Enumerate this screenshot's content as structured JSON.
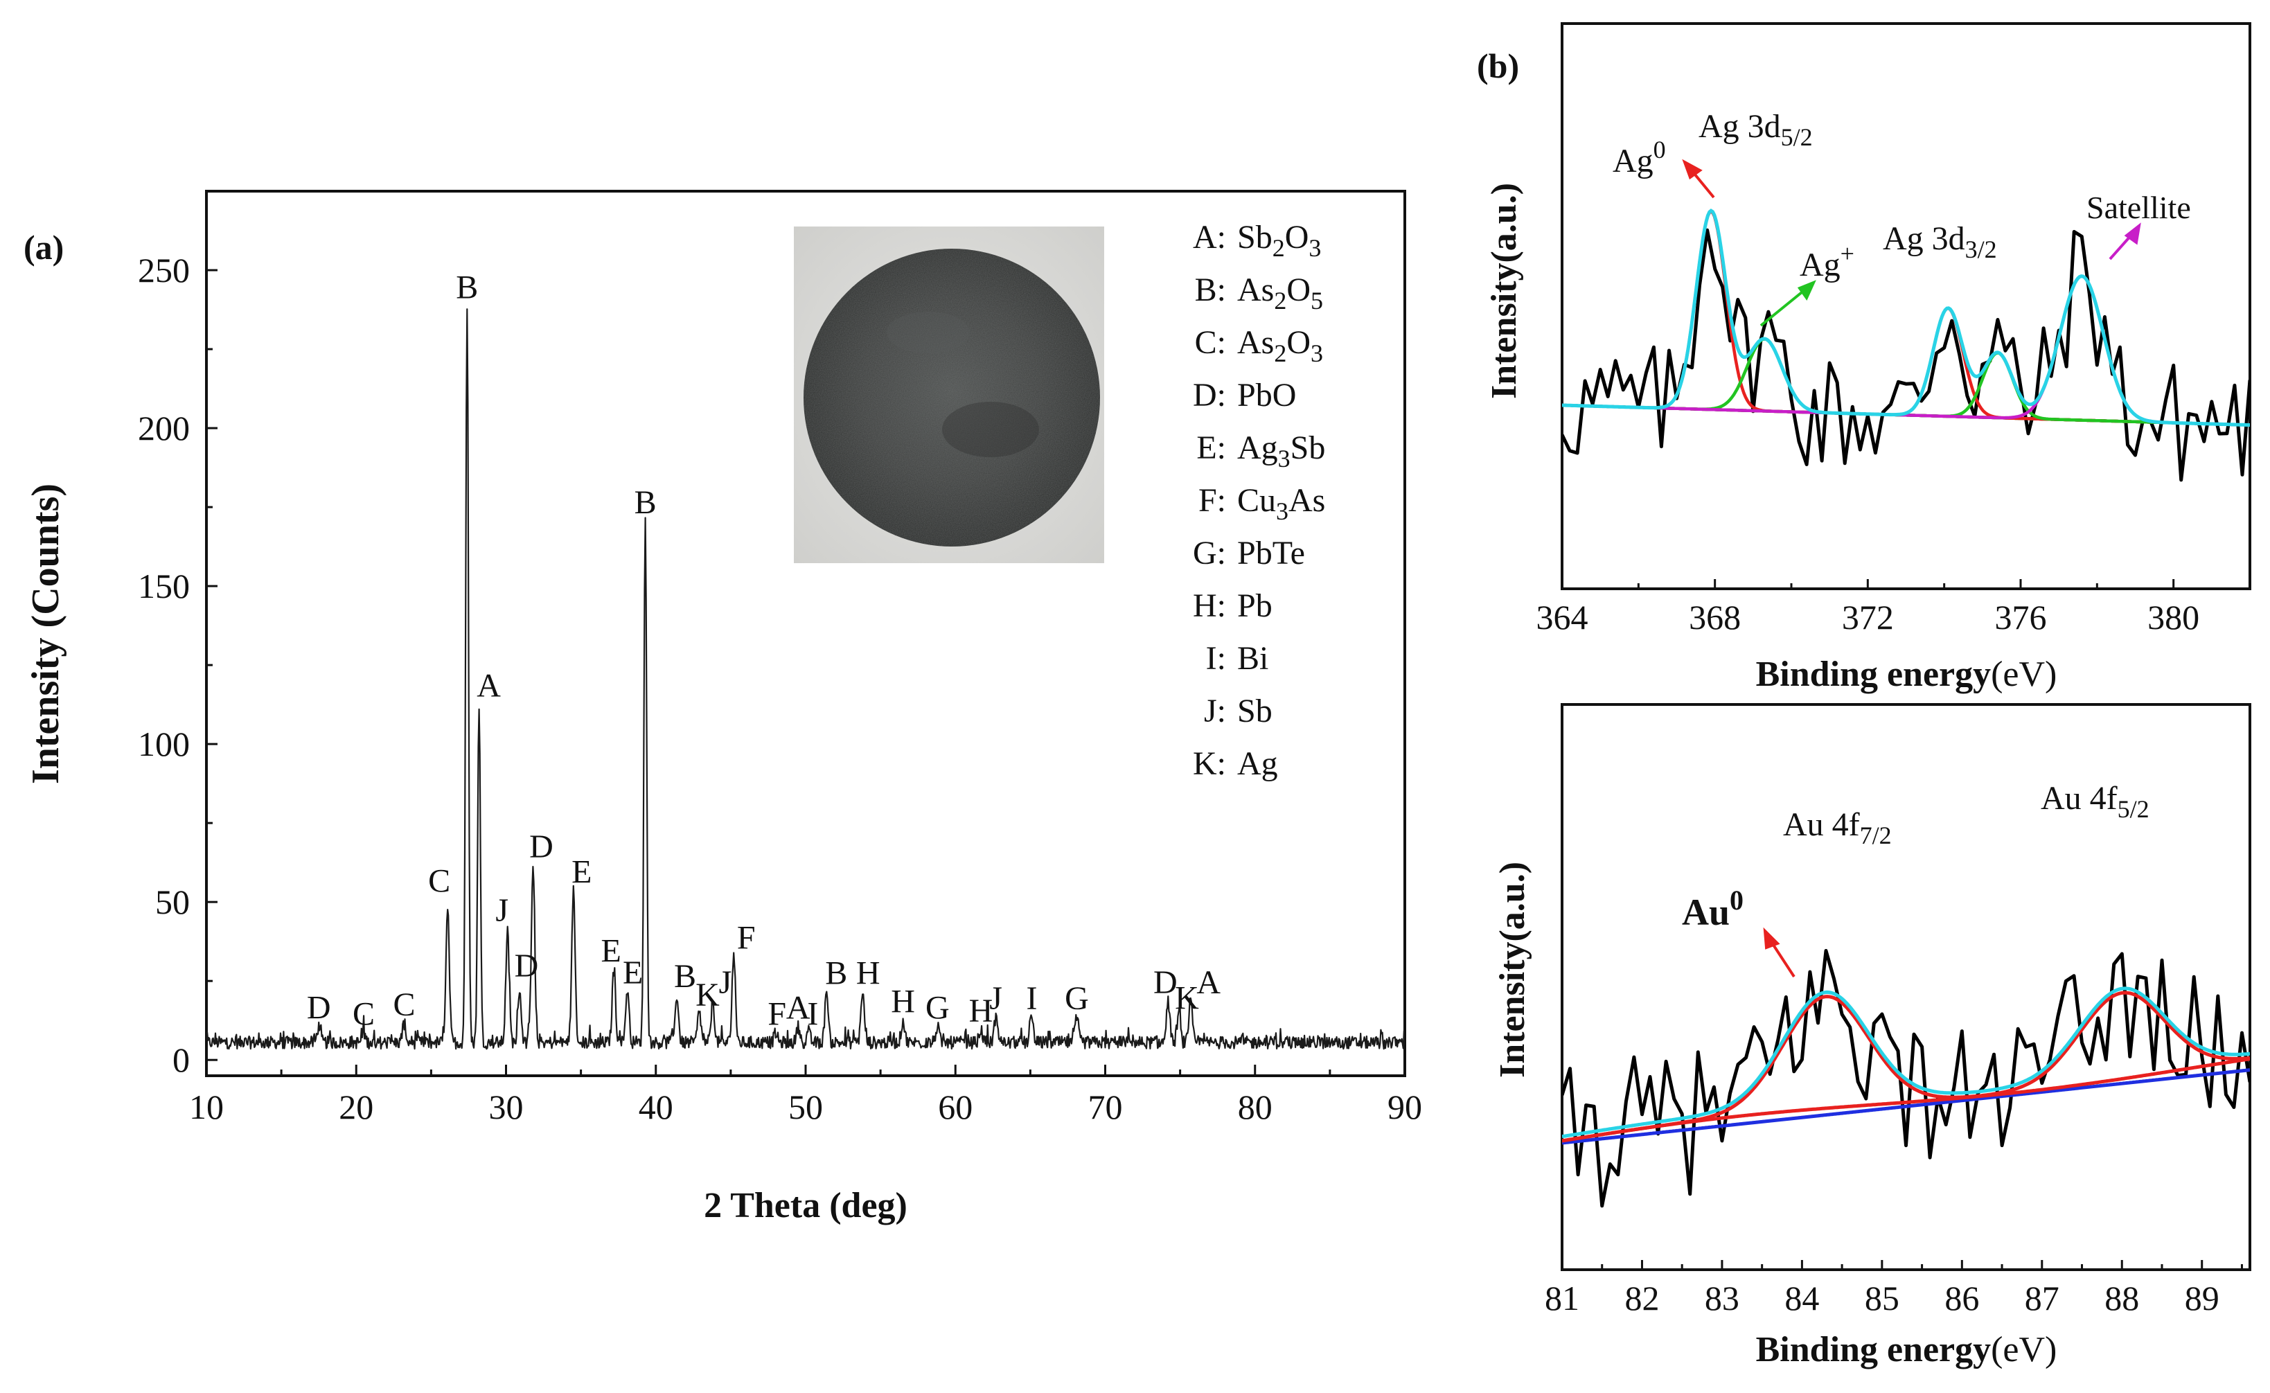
{
  "figure": {
    "panels": [
      {
        "id": "a",
        "label": "(a)",
        "type": "line",
        "xlabel": "2 Theta (deg)",
        "ylabel": "Intensity (Counts)",
        "xlim": [
          10,
          90
        ],
        "ylim": [
          -5,
          275
        ],
        "xticks": [
          10,
          20,
          30,
          40,
          50,
          60,
          70,
          80,
          90
        ],
        "yticks": [
          0,
          50,
          100,
          150,
          200,
          250
        ],
        "series_color": "#1a1a1a",
        "peaks": [
          {
            "x": 17.5,
            "y": 10,
            "label": "D"
          },
          {
            "x": 20.5,
            "y": 8,
            "label": "C"
          },
          {
            "x": 23.2,
            "y": 11,
            "label": "C"
          },
          {
            "x": 26.1,
            "y": 48,
            "label": "C"
          },
          {
            "x": 27.4,
            "y": 238,
            "label": "B"
          },
          {
            "x": 28.2,
            "y": 112,
            "label": "A"
          },
          {
            "x": 30.1,
            "y": 40,
            "label": "J"
          },
          {
            "x": 30.9,
            "y": 22,
            "label": "D"
          },
          {
            "x": 31.8,
            "y": 61,
            "label": "D"
          },
          {
            "x": 34.5,
            "y": 53,
            "label": "E"
          },
          {
            "x": 37.2,
            "y": 28,
            "label": "E"
          },
          {
            "x": 38.1,
            "y": 22,
            "label": "E"
          },
          {
            "x": 39.3,
            "y": 170,
            "label": "B"
          },
          {
            "x": 41.4,
            "y": 20,
            "label": "B"
          },
          {
            "x": 42.9,
            "y": 15,
            "label": "K"
          },
          {
            "x": 43.8,
            "y": 18,
            "label": "J"
          },
          {
            "x": 45.2,
            "y": 33,
            "label": "F"
          },
          {
            "x": 48.0,
            "y": 8,
            "label": "F"
          },
          {
            "x": 49.5,
            "y": 10,
            "label": "A"
          },
          {
            "x": 50.2,
            "y": 8,
            "label": "I"
          },
          {
            "x": 51.4,
            "y": 21,
            "label": "B"
          },
          {
            "x": 53.8,
            "y": 21,
            "label": "H"
          },
          {
            "x": 56.5,
            "y": 12,
            "label": "H"
          },
          {
            "x": 58.8,
            "y": 10,
            "label": "G"
          },
          {
            "x": 61.7,
            "y": 9,
            "label": "H"
          },
          {
            "x": 62.7,
            "y": 13,
            "label": "J"
          },
          {
            "x": 65.1,
            "y": 13,
            "label": "I"
          },
          {
            "x": 68.1,
            "y": 13,
            "label": "G"
          },
          {
            "x": 74.2,
            "y": 18,
            "label": "D"
          },
          {
            "x": 74.9,
            "y": 14,
            "label": "K"
          },
          {
            "x": 75.7,
            "y": 18,
            "label": "A"
          }
        ],
        "legend": [
          {
            "key": "A:",
            "name": "Sb",
            "sub1": "2",
            "mid": "O",
            "sub2": "3"
          },
          {
            "key": "B:",
            "name": "As",
            "sub1": "2",
            "mid": "O",
            "sub2": "5"
          },
          {
            "key": "C:",
            "name": "As",
            "sub1": "2",
            "mid": "O",
            "sub2": "3"
          },
          {
            "key": "D:",
            "name": "PbO",
            "sub1": "",
            "mid": "",
            "sub2": ""
          },
          {
            "key": "E:",
            "name": "Ag",
            "sub1": "3",
            "mid": "Sb",
            "sub2": ""
          },
          {
            "key": "F:",
            "name": "Cu",
            "sub1": "3",
            "mid": "As",
            "sub2": ""
          },
          {
            "key": "G:",
            "name": "PbTe",
            "sub1": "",
            "mid": "",
            "sub2": ""
          },
          {
            "key": "H:",
            "name": "Pb",
            "sub1": "",
            "mid": "",
            "sub2": ""
          },
          {
            "key": "I:",
            "name": "Bi",
            "sub1": "",
            "mid": "",
            "sub2": ""
          },
          {
            "key": "J:",
            "name": "Sb",
            "sub1": "",
            "mid": "",
            "sub2": ""
          },
          {
            "key": "K:",
            "name": "Ag",
            "sub1": "",
            "mid": "",
            "sub2": ""
          }
        ]
      },
      {
        "id": "b_top",
        "label": "(b)",
        "type": "line",
        "xlabel": "Binding energy",
        "xlabel_unit": "(eV)",
        "ylabel": "Intensity(a.u.)",
        "xlim": [
          364,
          382
        ],
        "xticks": [
          364,
          368,
          372,
          376,
          380
        ],
        "fits": [
          {
            "name": "Ag0",
            "center": 367.9,
            "height": 0.55,
            "width": 0.55,
            "color": "#e8211f"
          },
          {
            "name": "Ag+",
            "center": 369.3,
            "height": 0.2,
            "width": 0.65,
            "color": "#22c422"
          },
          {
            "name": "Ag 3d3/2 Ag0",
            "center": 374.1,
            "height": 0.3,
            "width": 0.55,
            "color": "#e8211f"
          },
          {
            "name": "Ag 3d3/2 Ag+",
            "center": 375.4,
            "height": 0.18,
            "width": 0.55,
            "color": "#22c422"
          },
          {
            "name": "Satellite",
            "center": 377.6,
            "height": 0.4,
            "width": 0.8,
            "color": "#c81ec8"
          }
        ],
        "envelope_color": "#29d3e6",
        "baseline_color": "#c81ec8",
        "annotations": {
          "ag0": "Ag",
          "ag0_sup": "0",
          "ag3d52": "Ag 3d",
          "ag3d52_sub": "5/2",
          "agplus": "Ag",
          "agplus_sup": "+",
          "ag3d32": "Ag 3d",
          "ag3d32_sub": "3/2",
          "satellite": "Satellite"
        }
      },
      {
        "id": "b_bottom",
        "type": "line",
        "xlabel": "Binding energy",
        "xlabel_unit": "(eV)",
        "ylabel": "Intensity(a.u.)",
        "xlim": [
          81,
          89.6
        ],
        "xticks": [
          81,
          82,
          83,
          84,
          85,
          86,
          87,
          88,
          89
        ],
        "fits": [
          {
            "name": "Au 4f7/2",
            "center": 84.3,
            "height": 0.26,
            "width": 0.75,
            "color": "#e8211f"
          },
          {
            "name": "Au 4f5/2",
            "center": 88.0,
            "height": 0.2,
            "width": 0.75,
            "color": "#e8211f"
          }
        ],
        "envelope_color": "#29d3e6",
        "baseline_color": "#1f2fe0",
        "annotations": {
          "au0": "Au",
          "au0_sup": "0",
          "au4f72": "Au 4f",
          "au4f72_sub": "7/2",
          "au4f52": "Au 4f",
          "au4f52_sub": "5/2"
        }
      }
    ],
    "inset_photo": "black powder sample on white background"
  }
}
